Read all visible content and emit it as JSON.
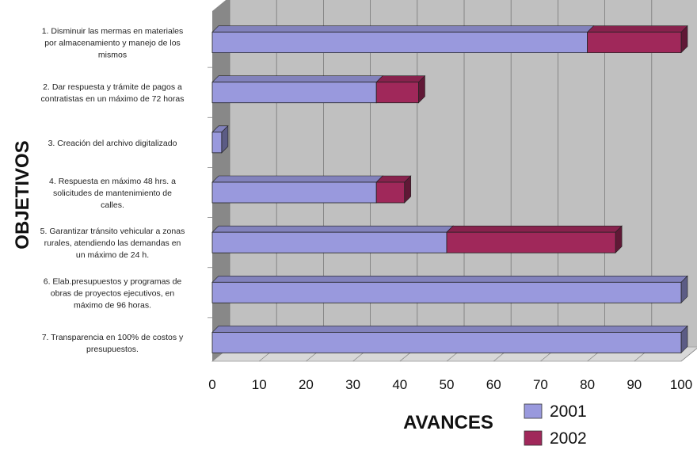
{
  "chart_data": {
    "type": "bar",
    "orientation": "horizontal",
    "stacked": true,
    "three_d": true,
    "categories": [
      "1. Disminuir las mermas en materiales por almacenamiento y manejo de los mismos",
      "2. Dar respuesta y trámite de pagos a contratistas en un máximo de 72 horas",
      "3. Creación del archivo digitalizado",
      "4. Respuesta en máximo 48 hrs. a solicitudes de mantenimiento de calles.",
      "5. Garantizar tránsito vehicular a zonas rurales, atendiendo las demandas en un máximo de 24 h.",
      "6. Elab.presupuestos y programas de obras de proyectos ejecutivos, en máximo de 96 horas.",
      "7. Transparencia en 100% de costos y presupuestos."
    ],
    "category_lines": [
      [
        "1. Disminuir las mermas en materiales",
        "por almacenamiento y manejo de los",
        "mismos"
      ],
      [
        "2. Dar respuesta y trámite de pagos a",
        "contratistas en un máximo de 72 horas"
      ],
      [
        "3. Creación del archivo digitalizado"
      ],
      [
        "4. Respuesta en máximo 48 hrs. a",
        "solicitudes de mantenimiento de",
        "calles."
      ],
      [
        "5. Garantizar tránsito vehicular a zonas",
        "rurales, atendiendo las demandas en",
        "un máximo de 24 h."
      ],
      [
        "6. Elab.presupuestos y programas de",
        "obras de proyectos ejecutivos, en",
        "máximo de 96 horas."
      ],
      [
        "7. Transparencia en 100% de costos y",
        "presupuestos."
      ]
    ],
    "series": [
      {
        "name": "2001",
        "color": "#9999dd",
        "values": [
          80,
          35,
          2,
          35,
          50,
          100,
          100
        ]
      },
      {
        "name": "2002",
        "color": "#a0285a",
        "values": [
          20,
          9,
          0,
          6,
          36,
          0,
          0
        ]
      }
    ],
    "xlim": [
      0,
      100
    ],
    "xticks": [
      0,
      10,
      20,
      30,
      40,
      50,
      60,
      70,
      80,
      90,
      100
    ],
    "xlabel": "AVANCES",
    "ylabel": "OBJETIVOS",
    "grid": true,
    "legend_position": "bottom-right",
    "wall_color": "#c0c0c0",
    "floor_color": "#888888"
  }
}
